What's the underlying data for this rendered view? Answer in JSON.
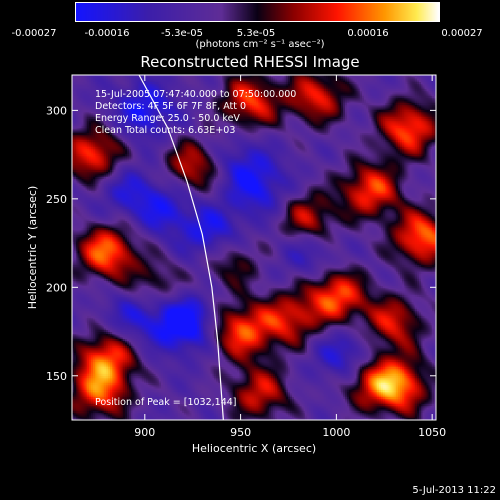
{
  "colorbar": {
    "tick_labels": [
      "-0.00027",
      "-0.00016",
      "-5.3e-05",
      "5.3e-05",
      "0.00016",
      "0.00027"
    ],
    "unit_label": "(photons cm⁻² s⁻¹ asec⁻²)",
    "range": [
      -0.00027,
      0.00027
    ]
  },
  "annotations": {
    "time_range": "15-Jul-2005 07:47:40.000 to 07:50:00.000",
    "detectors": "Detectors: 4F 5F 6F 7F 8F, Att 0",
    "energy_range": "Energy Range: 25.0 - 50.0 keV",
    "clean_counts": "Clean      Total counts: 6.63E+03",
    "peak_position": "Position of Peak = [1032,144]"
  },
  "datestamp": "5-Jul-2013 11:22",
  "chart_data": {
    "type": "heatmap",
    "title": "Reconstructed RHESSI Image",
    "xlabel": "Heliocentric X (arcsec)",
    "ylabel": "Heliocentric Y (arcsec)",
    "xlim": [
      862,
      1052
    ],
    "ylim": [
      125,
      320
    ],
    "xticks": [
      900,
      950,
      1000,
      1050
    ],
    "yticks": [
      150,
      200,
      250,
      300
    ],
    "peak": {
      "x": 1032,
      "y": 144
    },
    "grid": false,
    "colormap": "blue-purple-red-orange-yellow-white",
    "limb_curve": [
      [
        897,
        320
      ],
      [
        912,
        290
      ],
      [
        922,
        260
      ],
      [
        930,
        230
      ],
      [
        935,
        200
      ],
      [
        938,
        170
      ],
      [
        940,
        140
      ],
      [
        941,
        125
      ]
    ],
    "hotspots": [
      {
        "x": 1032,
        "y": 144,
        "amp": 1.0
      },
      {
        "x": 880,
        "y": 220,
        "amp": 0.95
      },
      {
        "x": 873,
        "y": 275,
        "amp": 0.85
      },
      {
        "x": 925,
        "y": 268,
        "amp": 0.7
      },
      {
        "x": 955,
        "y": 305,
        "amp": 0.8
      },
      {
        "x": 990,
        "y": 308,
        "amp": 0.75
      },
      {
        "x": 1038,
        "y": 290,
        "amp": 0.9
      },
      {
        "x": 1018,
        "y": 255,
        "amp": 0.85
      },
      {
        "x": 1045,
        "y": 228,
        "amp": 0.95
      },
      {
        "x": 985,
        "y": 238,
        "amp": 0.7
      },
      {
        "x": 1000,
        "y": 195,
        "amp": 0.9
      },
      {
        "x": 975,
        "y": 182,
        "amp": 0.7
      },
      {
        "x": 950,
        "y": 175,
        "amp": 0.85
      },
      {
        "x": 1030,
        "y": 180,
        "amp": 0.7
      },
      {
        "x": 1015,
        "y": 148,
        "amp": 0.6
      },
      {
        "x": 960,
        "y": 140,
        "amp": 0.7
      },
      {
        "x": 880,
        "y": 160,
        "amp": 0.85
      },
      {
        "x": 876,
        "y": 140,
        "amp": 0.8
      },
      {
        "x": 905,
        "y": 200,
        "amp": 0.5
      },
      {
        "x": 945,
        "y": 215,
        "amp": 0.5
      }
    ],
    "coldspots": [
      {
        "x": 920,
        "y": 180,
        "amp": -0.9
      },
      {
        "x": 935,
        "y": 230,
        "amp": -0.6
      },
      {
        "x": 910,
        "y": 245,
        "amp": -0.5
      },
      {
        "x": 960,
        "y": 255,
        "amp": -0.5
      },
      {
        "x": 900,
        "y": 300,
        "amp": -0.6
      },
      {
        "x": 890,
        "y": 255,
        "amp": -0.4
      },
      {
        "x": 950,
        "y": 270,
        "amp": -0.4
      },
      {
        "x": 1005,
        "y": 160,
        "amp": -0.6
      },
      {
        "x": 985,
        "y": 220,
        "amp": -0.4
      },
      {
        "x": 895,
        "y": 185,
        "amp": -0.5
      }
    ]
  }
}
